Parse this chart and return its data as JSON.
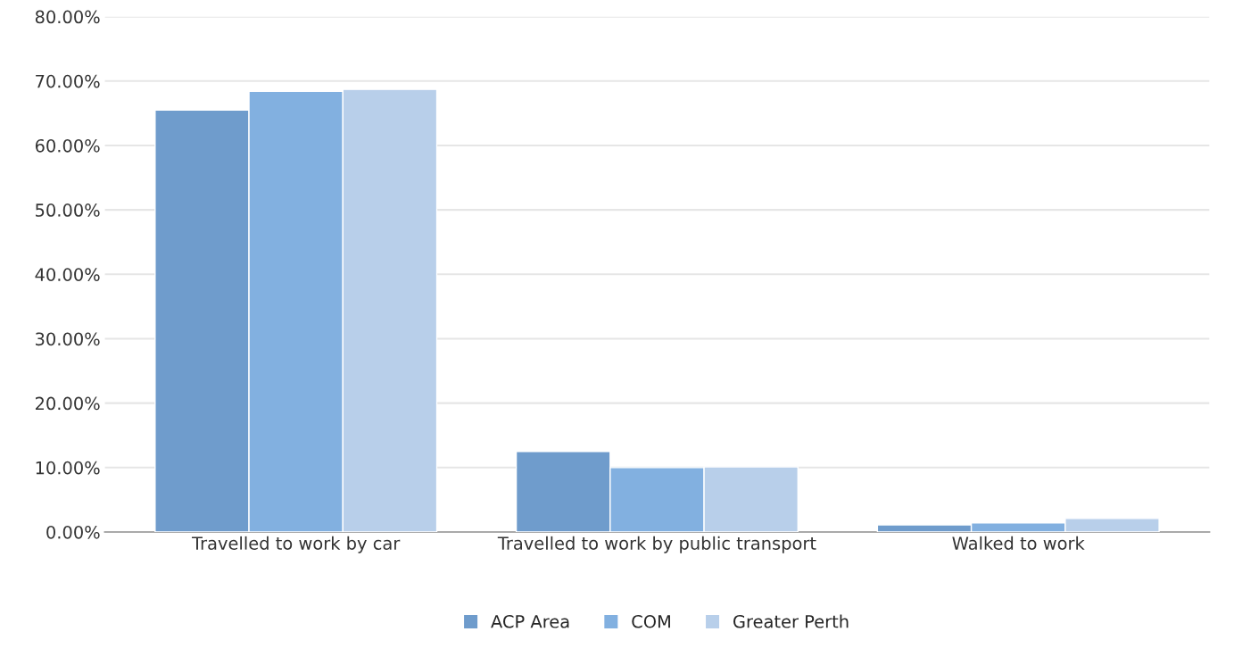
{
  "chart_data": {
    "type": "bar",
    "categories": [
      "Travelled to work by car",
      "Travelled to work by public transport",
      "Walked to work"
    ],
    "series": [
      {
        "name": "ACP Area",
        "color": "#6f9ccc",
        "values": [
          65.5,
          12.5,
          1.1
        ]
      },
      {
        "name": "COM",
        "color": "#82b0e0",
        "values": [
          68.4,
          10.0,
          1.4
        ]
      },
      {
        "name": "Greater Perth",
        "color": "#b8cfea",
        "values": [
          68.7,
          10.1,
          2.1
        ]
      }
    ],
    "ylim": [
      0,
      80
    ],
    "yticks": [
      {
        "value": 0,
        "label": "0.00%"
      },
      {
        "value": 10,
        "label": "10.00%"
      },
      {
        "value": 20,
        "label": "20.00%"
      },
      {
        "value": 30,
        "label": "30.00%"
      },
      {
        "value": 40,
        "label": "40.00%"
      },
      {
        "value": 50,
        "label": "50.00%"
      },
      {
        "value": 60,
        "label": "60.00%"
      },
      {
        "value": 70,
        "label": "70.00%"
      },
      {
        "value": 80,
        "label": "80.00%"
      }
    ],
    "grid": "y",
    "legend": "bottom"
  }
}
